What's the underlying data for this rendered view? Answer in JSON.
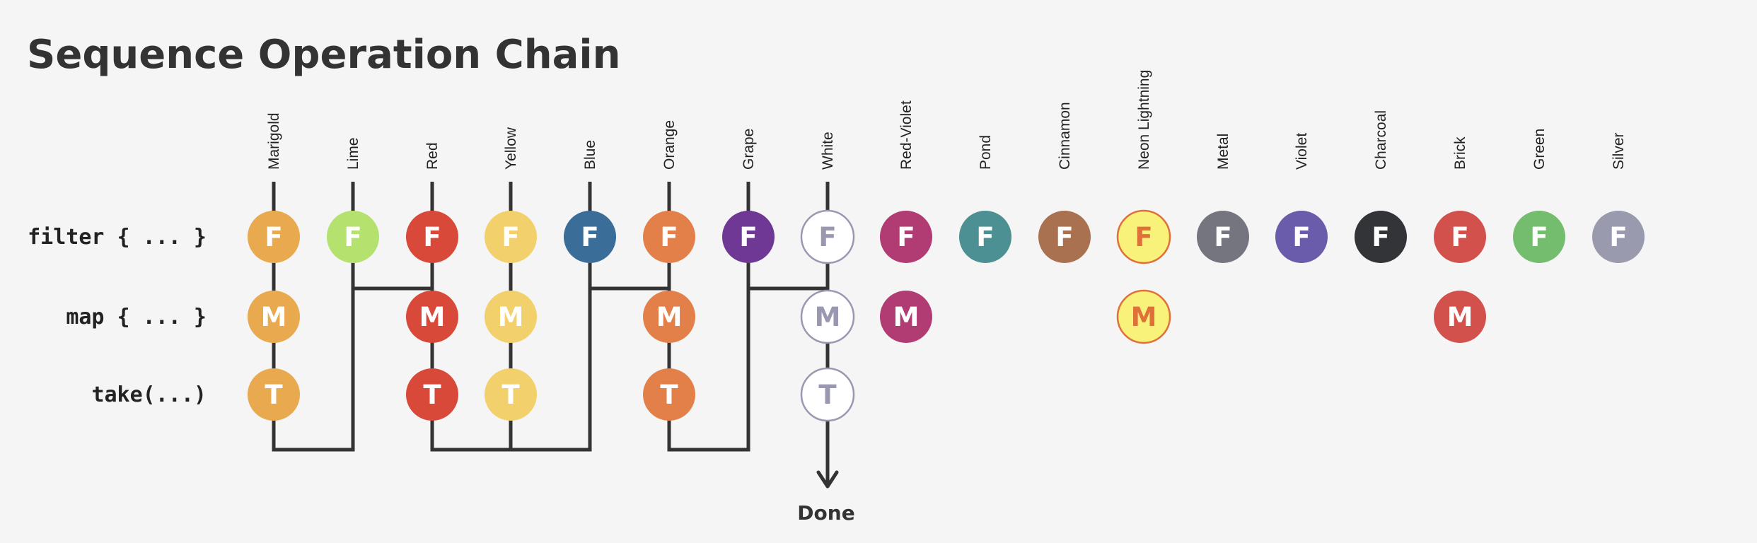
{
  "title": "Sequence Operation Chain",
  "rows": [
    {
      "id": "filter",
      "label": "filter { ... }",
      "letter": "F"
    },
    {
      "id": "map",
      "label": "map { ... }",
      "letter": "M"
    },
    {
      "id": "take",
      "label": "take(...)",
      "letter": "T"
    }
  ],
  "done_label": "Done",
  "columns": [
    {
      "name": "Marigold",
      "color": "#E8A94F",
      "text": "#FFFFFF",
      "ops": 3
    },
    {
      "name": "Lime",
      "color": "#B5E26E",
      "text": "#FFFFFF",
      "ops": 1
    },
    {
      "name": "Red",
      "color": "#D9493A",
      "text": "#FFFFFF",
      "ops": 3
    },
    {
      "name": "Yellow",
      "color": "#F2D06B",
      "text": "#FFFFFF",
      "ops": 3
    },
    {
      "name": "Blue",
      "color": "#3A6D98",
      "text": "#FFFFFF",
      "ops": 1
    },
    {
      "name": "Orange",
      "color": "#E38049",
      "text": "#FFFFFF",
      "ops": 3
    },
    {
      "name": "Grape",
      "color": "#6E3894",
      "text": "#FFFFFF",
      "ops": 1
    },
    {
      "name": "White",
      "color": "#FFFFFF",
      "text": "#9A98B0",
      "stroke": "#9A98B0",
      "ops": 3
    },
    {
      "name": "Red-Violet",
      "color": "#B13C74",
      "text": "#FFFFFF",
      "ops": 2
    },
    {
      "name": "Pond",
      "color": "#4C9094",
      "text": "#FFFFFF",
      "ops": 1
    },
    {
      "name": "Cinnamon",
      "color": "#A9714F",
      "text": "#FFFFFF",
      "ops": 1
    },
    {
      "name": "Neon Lightning",
      "color": "#F8F27A",
      "text": "#E0703A",
      "stroke": "#E0703A",
      "ops": 2
    },
    {
      "name": "Metal",
      "color": "#75757F",
      "text": "#FFFFFF",
      "ops": 1
    },
    {
      "name": "Violet",
      "color": "#6A5BAB",
      "text": "#FFFFFF",
      "ops": 1
    },
    {
      "name": "Charcoal",
      "color": "#333438",
      "text": "#FFFFFF",
      "ops": 1
    },
    {
      "name": "Brick",
      "color": "#D2514D",
      "text": "#FFFFFF",
      "ops": 2
    },
    {
      "name": "Green",
      "color": "#75BD6E",
      "text": "#FFFFFF",
      "ops": 1
    },
    {
      "name": "Silver",
      "color": "#9A9AAE",
      "text": "#FFFFFF",
      "ops": 1
    }
  ],
  "path_color": "#333333"
}
